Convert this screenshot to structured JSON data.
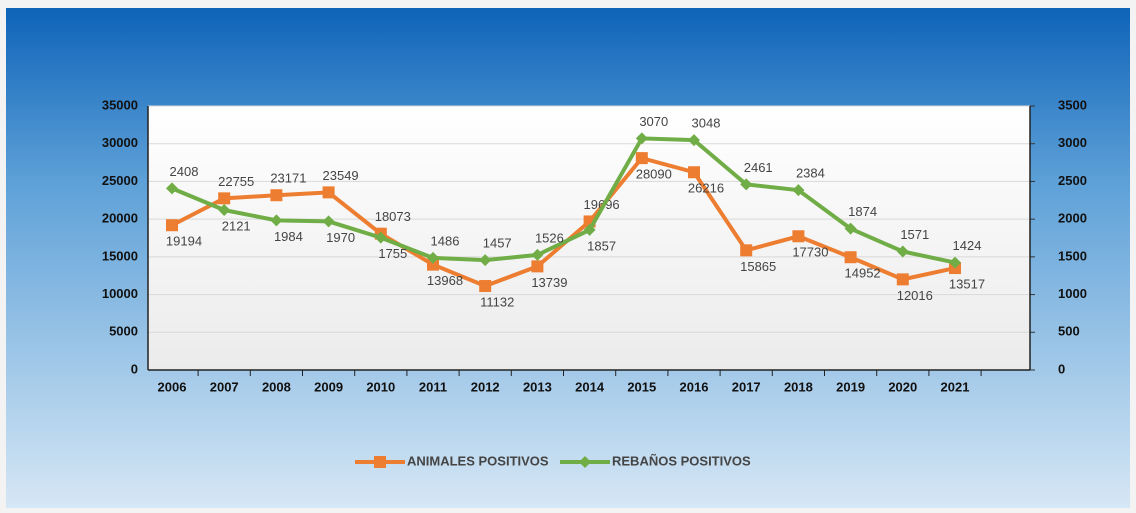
{
  "chart_data": {
    "type": "line",
    "categories": [
      "2006",
      "2007",
      "2008",
      "2009",
      "2010",
      "2011",
      "2012",
      "2013",
      "2014",
      "2015",
      "2016",
      "2017",
      "2018",
      "2019",
      "2020",
      "2021"
    ],
    "series": [
      {
        "name": "ANIMALES POSITIVOS",
        "color": "#ed7d31",
        "values": [
          19194,
          22755,
          23171,
          23549,
          18073,
          13968,
          11132,
          13739,
          19696,
          28090,
          26216,
          15865,
          17730,
          14952,
          12016,
          13517
        ]
      },
      {
        "name": "REBAÑOS POSITIVOS",
        "color": "#70ad47",
        "axis": "y2",
        "values": [
          2408,
          2121,
          1984,
          1970,
          1755,
          1486,
          1457,
          1526,
          1857,
          3070,
          3048,
          2461,
          2384,
          1874,
          1571,
          1424
        ]
      }
    ],
    "ylim": [
      0,
      35000
    ],
    "yticks": [
      0,
      5000,
      10000,
      15000,
      20000,
      25000,
      30000,
      35000
    ],
    "y2lim": [
      0,
      3500
    ],
    "y2ticks": [
      0,
      500,
      1000,
      1500,
      2000,
      2500,
      3000,
      3500
    ],
    "grid": true,
    "legend": "bottom"
  }
}
